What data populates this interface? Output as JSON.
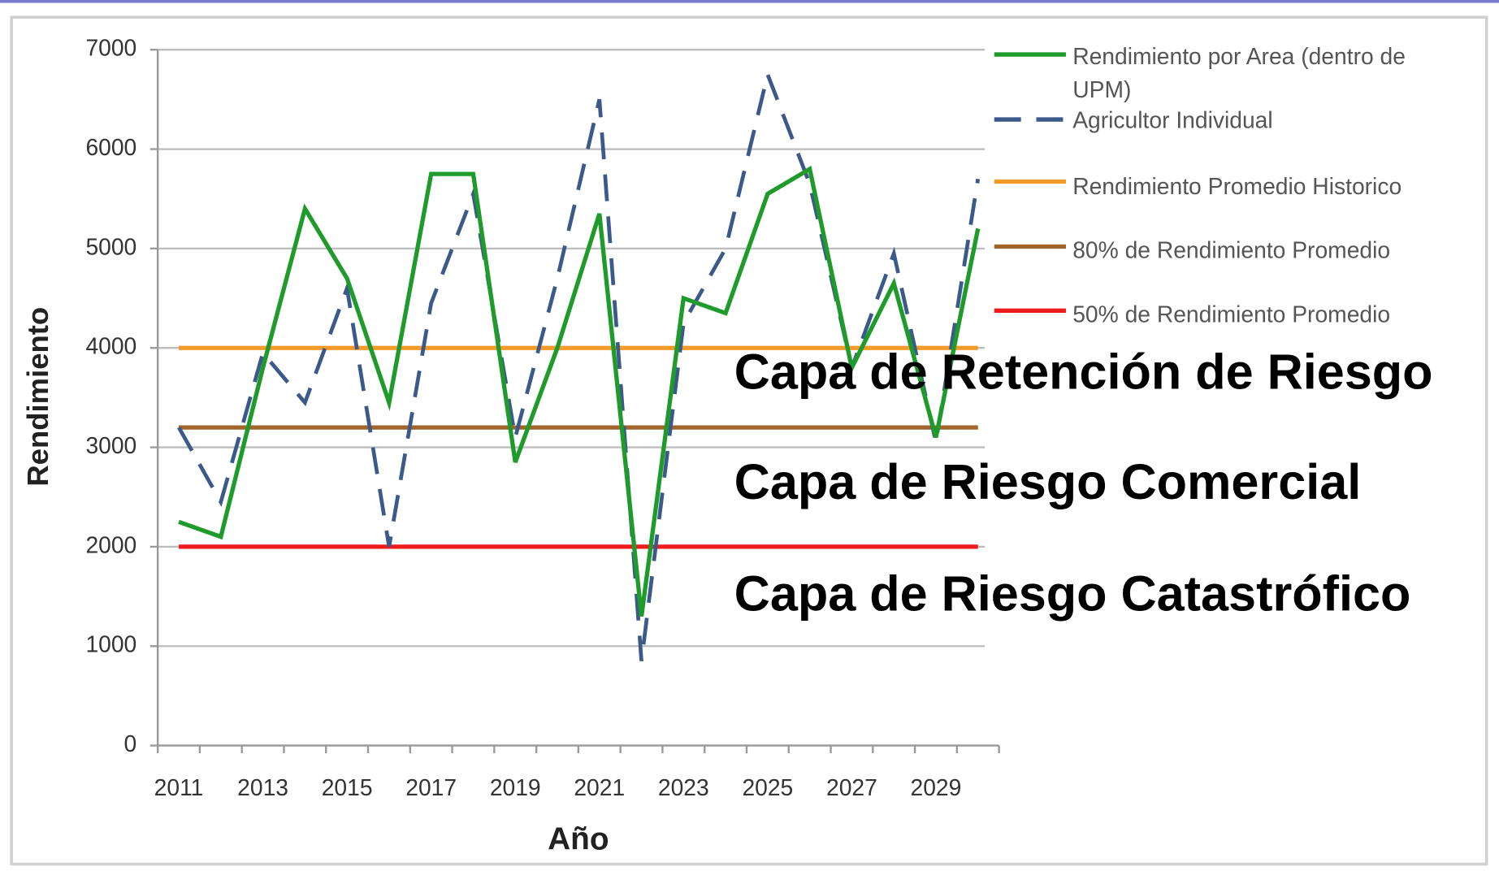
{
  "chart_data": {
    "type": "line",
    "x_label": "Año",
    "y_label": "Rendimiento",
    "categories": [
      "2011",
      null,
      "2013",
      null,
      "2015",
      null,
      "2017",
      null,
      "2019",
      null,
      "2021",
      null,
      "2023",
      null,
      "2025",
      null,
      "2027",
      null,
      "2029",
      null
    ],
    "series": [
      {
        "name": "Rendimiento por Area (dentro de UPM)",
        "color": "#1f9b2c",
        "style": "solid",
        "values": [
          2250,
          2100,
          3800,
          5400,
          4700,
          3450,
          5750,
          5750,
          2850,
          4000,
          5350,
          1300,
          4500,
          4350,
          5550,
          5800,
          3800,
          4650,
          3100,
          5200
        ]
      },
      {
        "name": "Agricultor Individual",
        "color": "#3b5a8a",
        "style": "dashed",
        "values": [
          3200,
          2450,
          3950,
          3450,
          4600,
          2000,
          4450,
          5550,
          3100,
          4700,
          6500,
          850,
          4250,
          5000,
          6750,
          5650,
          3800,
          4950,
          3050,
          5700
        ]
      },
      {
        "name": "Rendimiento Promedio Historico",
        "color": "#f39a2b",
        "style": "solid",
        "values": [
          4000,
          4000,
          4000,
          4000,
          4000,
          4000,
          4000,
          4000,
          4000,
          4000,
          4000,
          4000,
          4000,
          4000,
          4000,
          4000,
          4000,
          4000,
          4000,
          4000
        ]
      },
      {
        "name": "80% de Rendimiento Promedio",
        "color": "#a1642a",
        "style": "solid",
        "values": [
          3200,
          3200,
          3200,
          3200,
          3200,
          3200,
          3200,
          3200,
          3200,
          3200,
          3200,
          3200,
          3200,
          3200,
          3200,
          3200,
          3200,
          3200,
          3200,
          3200
        ]
      },
      {
        "name": "50% de Rendimiento Promedio",
        "color": "#f01c1c",
        "style": "solid",
        "values": [
          2000,
          2000,
          2000,
          2000,
          2000,
          2000,
          2000,
          2000,
          2000,
          2000,
          2000,
          2000,
          2000,
          2000,
          2000,
          2000,
          2000,
          2000,
          2000,
          2000
        ]
      }
    ],
    "annotations": [
      "Capa de Retención de Riesgo",
      "Capa de Riesgo Comercial",
      "Capa de Riesgo Catastrófico"
    ],
    "ylim": [
      0,
      7000
    ],
    "yticks": [
      0,
      1000,
      2000,
      3000,
      4000,
      5000,
      6000,
      7000
    ],
    "grid": true,
    "legend": "right"
  }
}
